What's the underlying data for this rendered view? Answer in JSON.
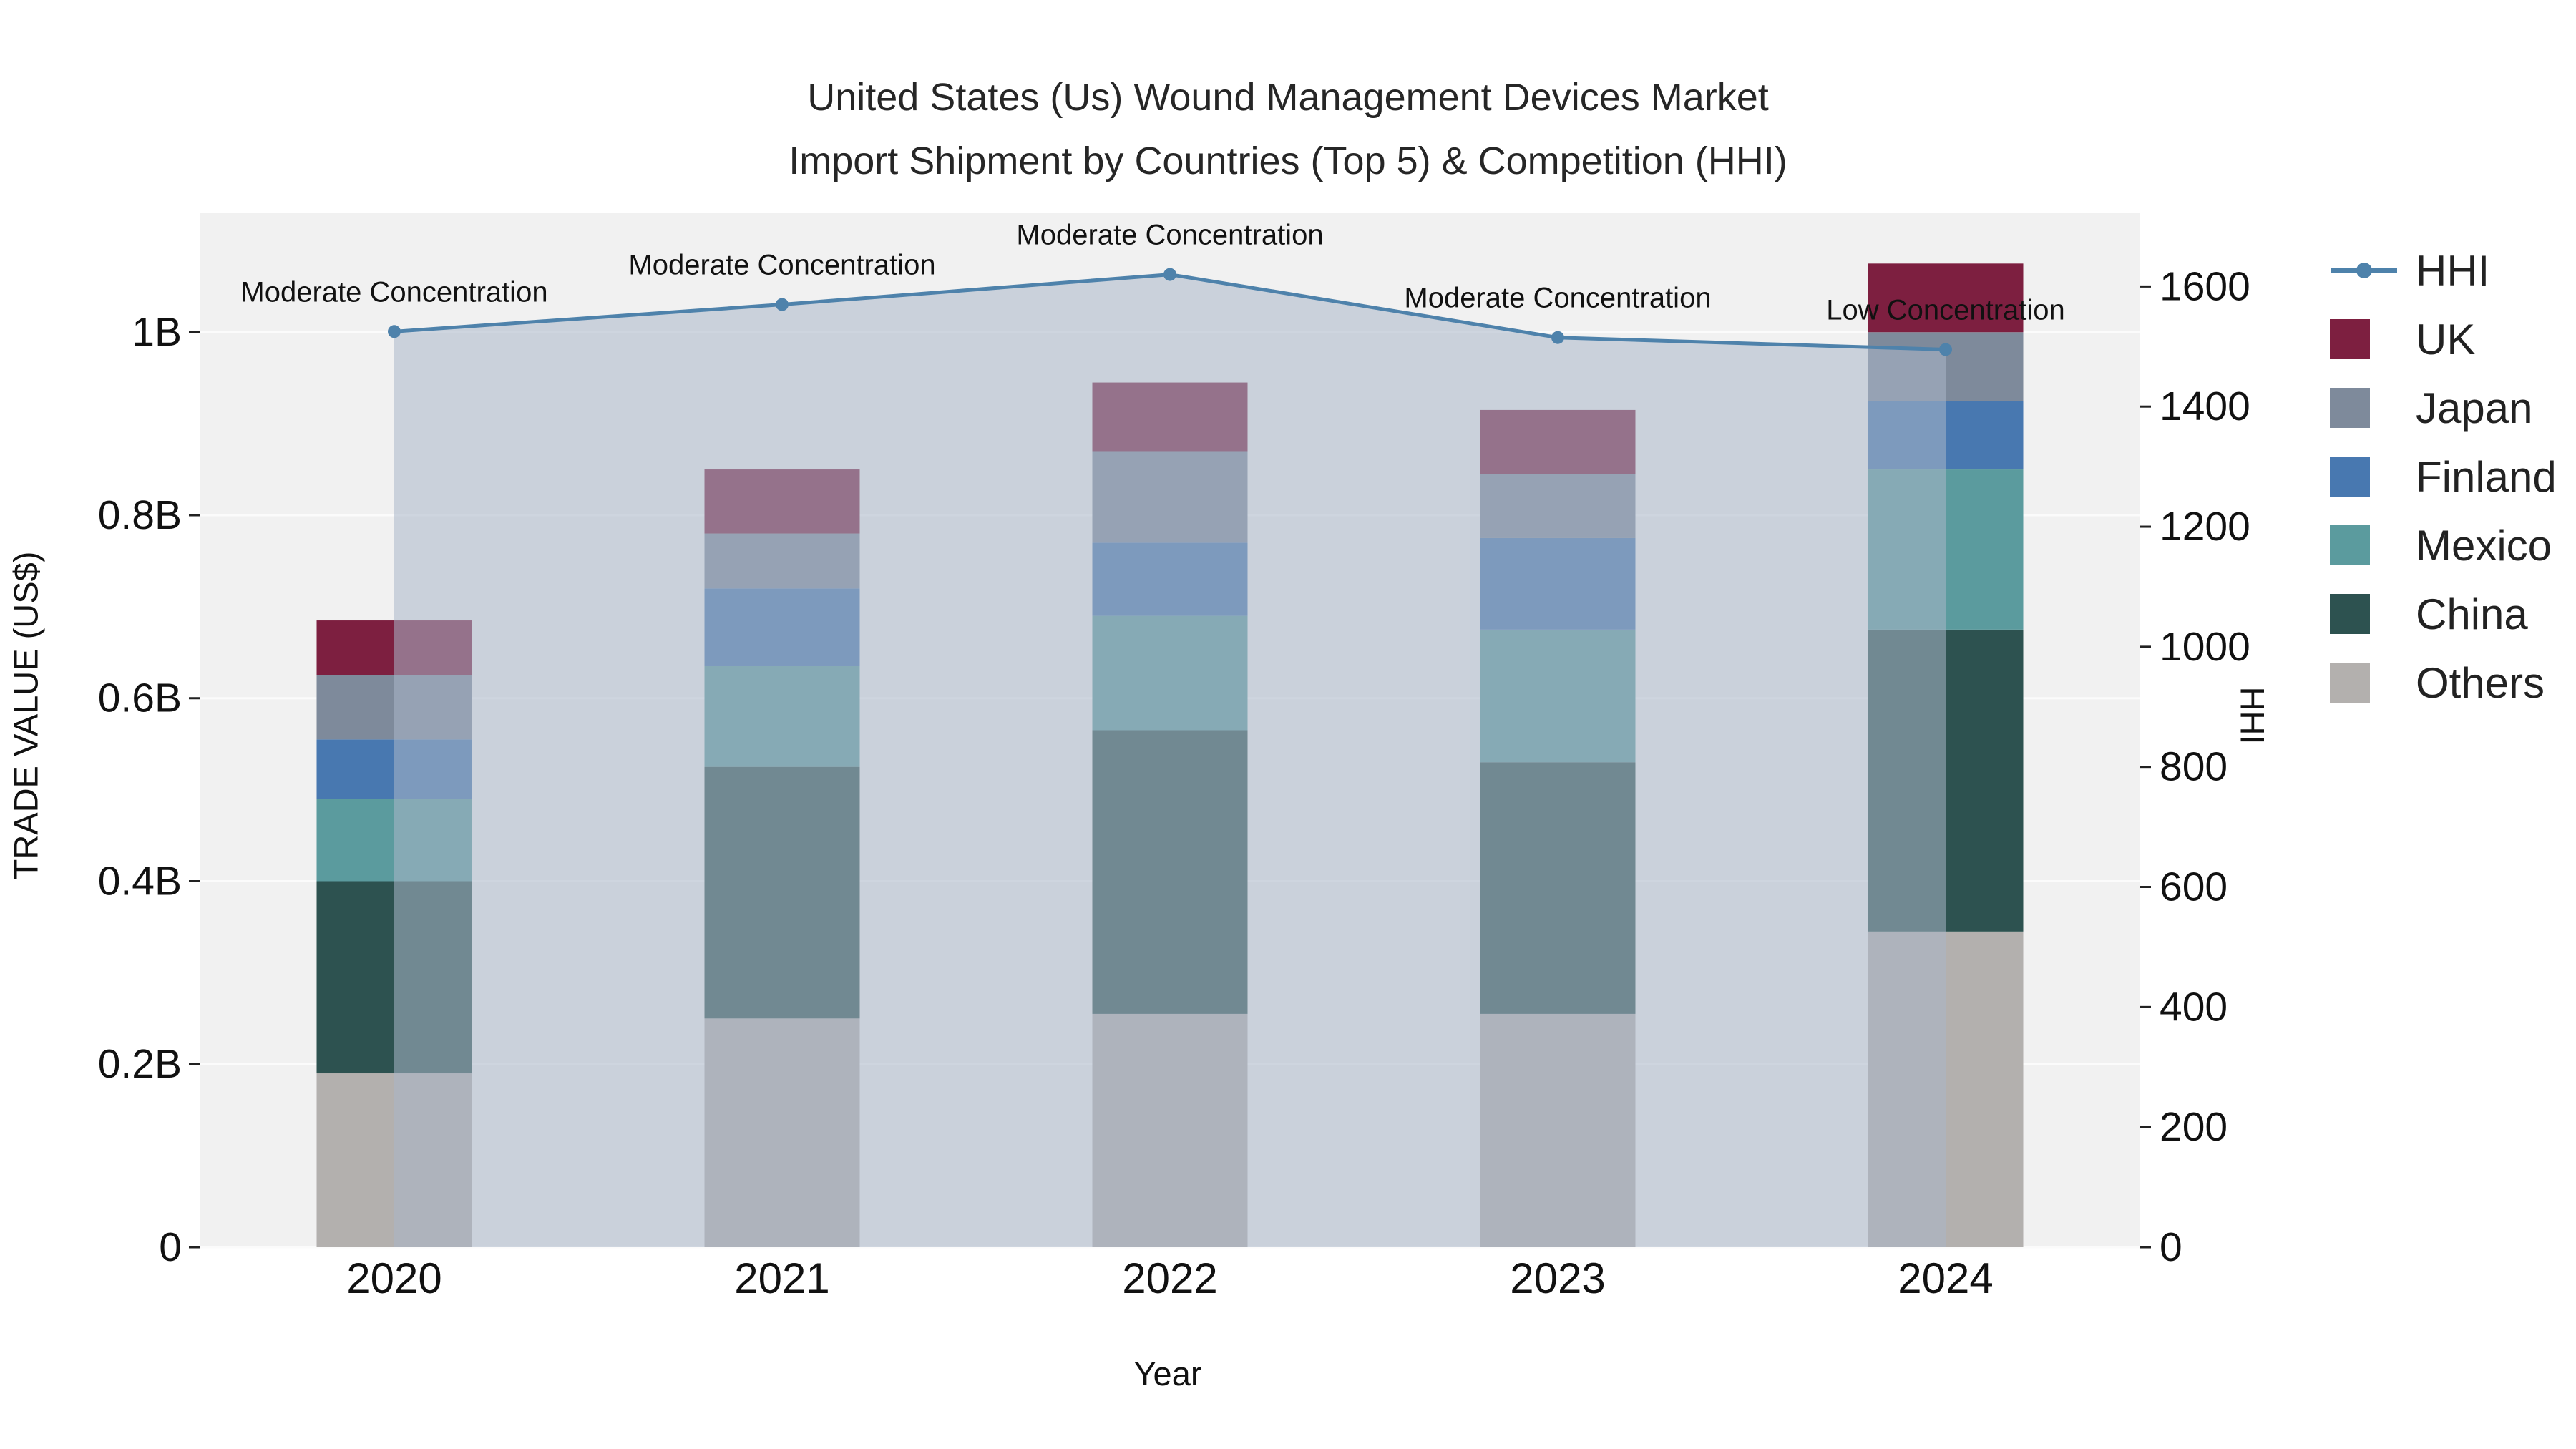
{
  "title": {
    "line1": "United States (Us) Wound Management Devices Market",
    "line2": "Import Shipment by Countries (Top 5) & Competition (HHI)"
  },
  "chart_data": {
    "type": "bar",
    "subtype": "stacked-bars-with-hhi-line-and-area",
    "categories": [
      "2020",
      "2021",
      "2022",
      "2023",
      "2024"
    ],
    "value_unit": "Billions US$",
    "series": [
      {
        "name": "Others",
        "color": "#b3b0ae",
        "values": [
          0.19,
          0.25,
          0.255,
          0.255,
          0.345
        ]
      },
      {
        "name": "China",
        "color": "#2d5250",
        "values": [
          0.21,
          0.275,
          0.31,
          0.275,
          0.33
        ]
      },
      {
        "name": "Mexico",
        "color": "#5b9b9e",
        "values": [
          0.09,
          0.11,
          0.125,
          0.145,
          0.175
        ]
      },
      {
        "name": "Finland",
        "color": "#4878b0",
        "values": [
          0.065,
          0.085,
          0.08,
          0.1,
          0.075
        ]
      },
      {
        "name": "Japan",
        "color": "#7e8a9b",
        "values": [
          0.07,
          0.06,
          0.1,
          0.07,
          0.075
        ]
      },
      {
        "name": "UK",
        "color": "#7d1f40",
        "values": [
          0.06,
          0.07,
          0.075,
          0.07,
          0.075
        ]
      }
    ],
    "line_series": {
      "name": "HHI",
      "color": "#4e82ab",
      "area_fill": "rgba(169,182,200,0.55)",
      "values": [
        1525,
        1570,
        1620,
        1515,
        1495
      ]
    },
    "annotations": [
      {
        "category": "2020",
        "text": "Moderate Concentration"
      },
      {
        "category": "2021",
        "text": "Moderate Concentration"
      },
      {
        "category": "2022",
        "text": "Moderate Concentration"
      },
      {
        "category": "2023",
        "text": "Moderate Concentration"
      },
      {
        "category": "2024",
        "text": "Low Concentration"
      }
    ],
    "left_axis": {
      "label": "TRADE VALUE (US$)",
      "tick_labels": [
        "0",
        "0.2B",
        "0.4B",
        "0.6B",
        "0.8B",
        "1B"
      ],
      "tick_values": [
        0,
        0.2,
        0.4,
        0.6,
        0.8,
        1.0
      ],
      "max": 1.13
    },
    "right_axis": {
      "label": "HHI",
      "tick_labels": [
        "0",
        "200",
        "400",
        "600",
        "800",
        "1000",
        "1200",
        "1400",
        "1600"
      ],
      "tick_values": [
        0,
        200,
        400,
        600,
        800,
        1000,
        1200,
        1400,
        1600
      ],
      "max": 1722
    },
    "x_axis": {
      "label": "Year"
    },
    "legend": [
      "HHI",
      "UK",
      "Japan",
      "Finland",
      "Mexico",
      "China",
      "Others"
    ],
    "plot_bg": "#f1f1f1",
    "grid_color": "#fbfbfb"
  }
}
